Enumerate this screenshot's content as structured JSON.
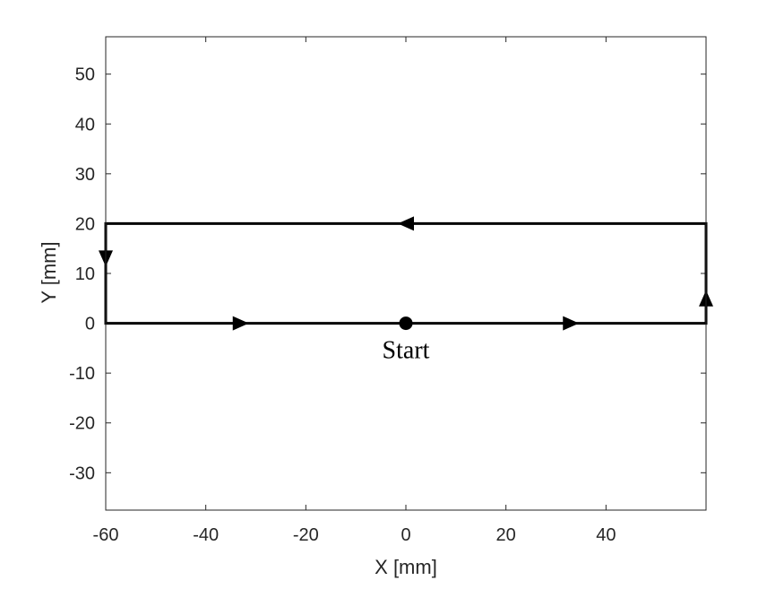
{
  "chart_data": {
    "type": "line",
    "xlabel": "X [mm]",
    "ylabel": "Y [mm]",
    "xlim": [
      -60,
      60
    ],
    "ylim": [
      -37.5,
      57.5
    ],
    "xticks": [
      -60,
      -40,
      -20,
      0,
      20,
      40
    ],
    "xtick_labels": [
      "-60",
      "-40",
      "-20",
      "0",
      "20",
      "40"
    ],
    "yticks": [
      -30,
      -20,
      -10,
      0,
      10,
      20,
      30,
      40,
      50
    ],
    "ytick_labels": [
      "-30",
      "-20",
      "-10",
      "0",
      "10",
      "20",
      "30",
      "40",
      "50"
    ],
    "grid": false,
    "series": [
      {
        "x": [
          0,
          60,
          60,
          -60,
          -60,
          0
        ],
        "y": [
          0,
          0,
          20,
          20,
          0,
          0
        ]
      }
    ],
    "direction_arrows": [
      {
        "x": -33,
        "y": 0,
        "direction": "right"
      },
      {
        "x": 33,
        "y": 0,
        "direction": "right"
      },
      {
        "x": 60,
        "y": 5,
        "direction": "up"
      },
      {
        "x": 0,
        "y": 20,
        "direction": "left"
      },
      {
        "x": -60,
        "y": 13,
        "direction": "down"
      }
    ],
    "start_marker": {
      "x": 0,
      "y": 0
    },
    "annotations": [
      {
        "text": "Start",
        "x": 0,
        "y": -7
      }
    ],
    "colors": {
      "line": "#000000",
      "axis": "#262626",
      "tick_text": "#262626"
    }
  }
}
